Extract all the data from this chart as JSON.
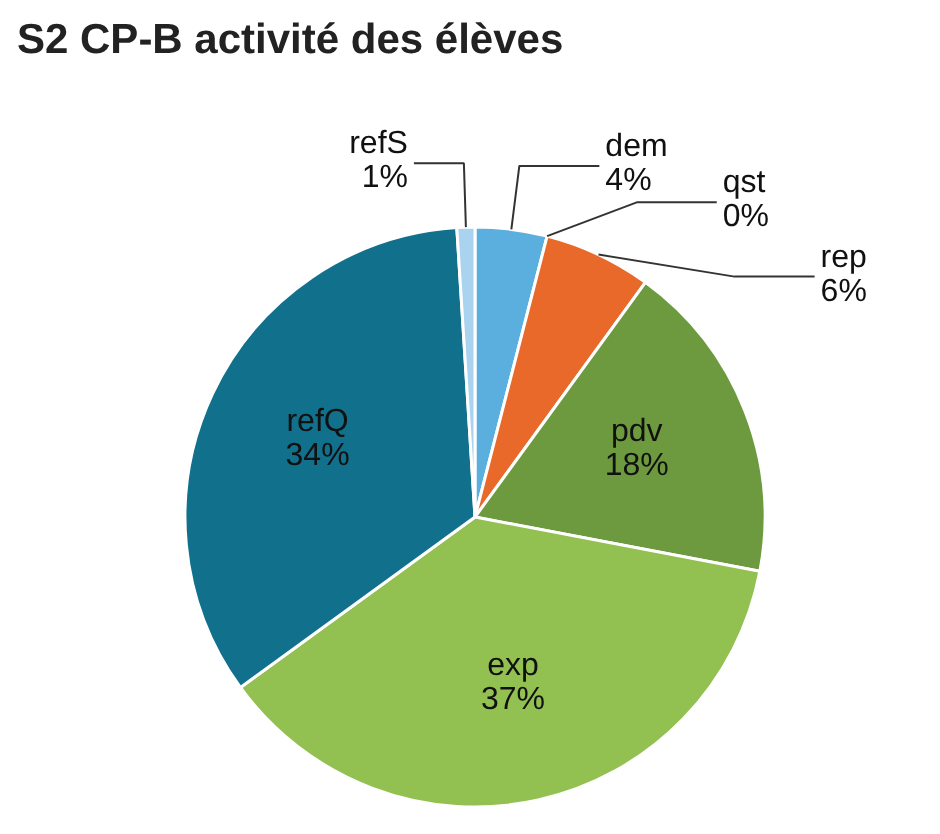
{
  "chart_data": {
    "type": "pie",
    "title": "S2 CP-B activité des élèves",
    "categories": [
      "dem",
      "qst",
      "rep",
      "pdv",
      "exp",
      "refQ",
      "refS"
    ],
    "values": [
      4,
      0,
      6,
      18,
      37,
      34,
      1
    ],
    "value_labels": [
      "4%",
      "0%",
      "6%",
      "18%",
      "37%",
      "34%",
      "1%"
    ],
    "colors": [
      "#5aafdf",
      "#f6c08c",
      "#e8692a",
      "#6e9a3f",
      "#93c151",
      "#11708c",
      "#a9d3ee"
    ]
  }
}
